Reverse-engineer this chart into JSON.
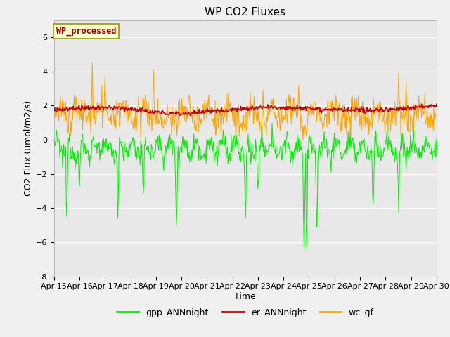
{
  "title": "WP CO2 Fluxes",
  "xlabel": "Time",
  "ylabel": "CO2 Flux (umol/m2/s)",
  "ylim": [
    -8,
    7
  ],
  "yticks": [
    -8,
    -6,
    -4,
    -2,
    0,
    2,
    4,
    6
  ],
  "n_points": 720,
  "xtick_labels": [
    "Apr 15",
    "Apr 16",
    "Apr 17",
    "Apr 18",
    "Apr 19",
    "Apr 20",
    "Apr 21",
    "Apr 22",
    "Apr 23",
    "Apr 24",
    "Apr 25",
    "Apr 26",
    "Apr 27",
    "Apr 28",
    "Apr 29",
    "Apr 30"
  ],
  "legend_labels": [
    "gpp_ANNnight",
    "er_ANNnight",
    "wc_gf"
  ],
  "gpp_color": "#00ee00",
  "er_color": "#cc0000",
  "wc_color": "#ffa500",
  "annotation_text": "WP_processed",
  "annotation_bg": "#ffffcc",
  "annotation_fg": "#990000",
  "bg_plot": "#e8e8e8",
  "bg_fig": "#f0f0f0",
  "grid_color": "#ffffff",
  "title_fontsize": 11,
  "axis_label_fontsize": 9,
  "tick_fontsize": 8
}
